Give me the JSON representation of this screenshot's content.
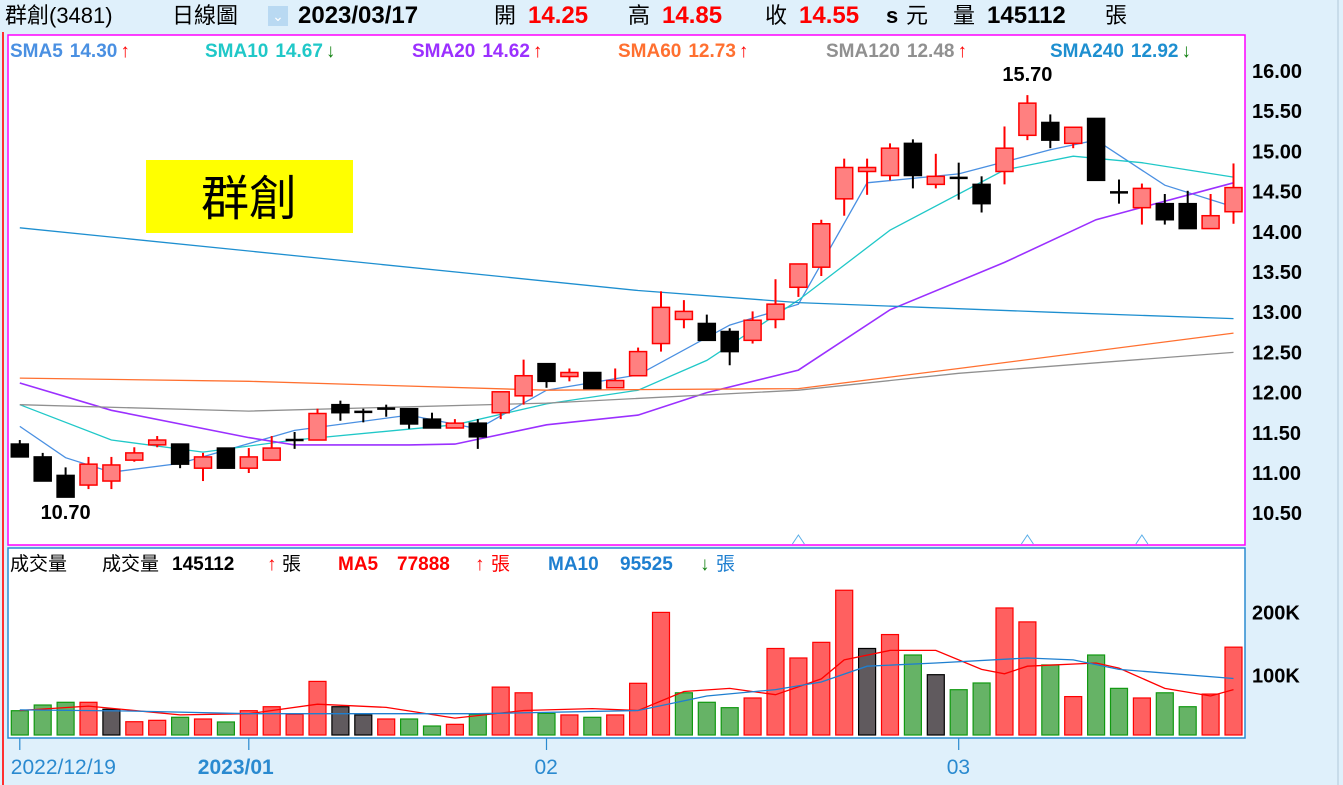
{
  "header": {
    "stock": "群創(3481)",
    "chart_type": "日線圖",
    "date": "2023/03/17",
    "open_label": "開",
    "open": "14.25",
    "high_label": "高",
    "high": "14.85",
    "close_label": "收",
    "close": "14.55",
    "s_label": "s",
    "unit": "元",
    "volume_label": "量",
    "volume": "145112",
    "volume_unit": "張"
  },
  "watermark": "群創",
  "colors": {
    "up": "#ff0000",
    "up_fill": "#ff8080",
    "down": "#000000",
    "vol_up": "#ff6060",
    "vol_down": "#66b366",
    "vol_flat": "#605a5e",
    "panel_border": "#ff00ff",
    "vol_border": "#2a8ad0"
  },
  "ma_labels": [
    {
      "name": "SMA5",
      "value": "14.30",
      "arrow": "↑",
      "color": "#4a90e2",
      "arrow_color": "#ff0000"
    },
    {
      "name": "SMA10",
      "value": "14.67",
      "arrow": "↓",
      "color": "#20c8c8",
      "arrow_color": "#108010"
    },
    {
      "name": "SMA20",
      "value": "14.62",
      "arrow": "↑",
      "color": "#9b30ff",
      "arrow_color": "#ff0000"
    },
    {
      "name": "SMA60",
      "value": "12.73",
      "arrow": "↑",
      "color": "#ff7030",
      "arrow_color": "#ff0000"
    },
    {
      "name": "SMA120",
      "value": "12.48",
      "arrow": "↑",
      "color": "#909090",
      "arrow_color": "#ff0000"
    },
    {
      "name": "SMA240",
      "value": "12.92",
      "arrow": "↓",
      "color": "#1e8fd0",
      "arrow_color": "#108010"
    }
  ],
  "volume_labels": {
    "title": "成交量",
    "vol_name": "成交量",
    "vol_value": "145112",
    "vol_arrow": "↑",
    "vol_unit": "張",
    "ma5_name": "MA5",
    "ma5_value": "77888",
    "ma5_arrow": "↑",
    "ma5_unit": "張",
    "ma10_name": "MA10",
    "ma10_value": "95525",
    "ma10_arrow": "↓",
    "ma10_unit": "張"
  },
  "chart_data": [
    {
      "type": "candlestick",
      "title": "群創(3481) 日線圖",
      "ylim": [
        10.1,
        16.45
      ],
      "y_ticks": [
        "16.00",
        "15.50",
        "15.00",
        "14.50",
        "14.00",
        "13.50",
        "13.00",
        "12.50",
        "12.00",
        "11.50",
        "11.00",
        "10.50"
      ],
      "x_ticks": [
        {
          "index": 0,
          "label": "2022/12/19"
        },
        {
          "index": 10,
          "label": "2023/01"
        },
        {
          "index": 23,
          "label": "02"
        },
        {
          "index": 41,
          "label": "03"
        }
      ],
      "annotations": [
        {
          "index": 44,
          "label": "15.70",
          "kind": "high"
        },
        {
          "index": 2,
          "label": "10.70",
          "kind": "low"
        }
      ],
      "markers": [
        34,
        44,
        49
      ],
      "ohlc": [
        [
          11.36,
          11.41,
          11.2,
          11.2
        ],
        [
          11.2,
          11.25,
          10.9,
          10.9
        ],
        [
          10.97,
          11.07,
          10.7,
          10.7
        ],
        [
          10.85,
          11.2,
          10.8,
          11.11
        ],
        [
          10.9,
          11.2,
          10.8,
          11.1
        ],
        [
          11.16,
          11.32,
          11.14,
          11.25
        ],
        [
          11.35,
          11.46,
          11.32,
          11.41
        ],
        [
          11.36,
          11.36,
          11.06,
          11.11
        ],
        [
          11.06,
          11.25,
          10.9,
          11.2
        ],
        [
          11.31,
          11.31,
          11.06,
          11.06
        ],
        [
          11.06,
          11.31,
          11.0,
          11.2
        ],
        [
          11.16,
          11.46,
          11.16,
          11.31
        ],
        [
          11.41,
          11.51,
          11.3,
          11.41
        ],
        [
          11.41,
          11.8,
          11.41,
          11.74
        ],
        [
          11.85,
          11.9,
          11.65,
          11.75
        ],
        [
          11.76,
          11.8,
          11.63,
          11.76
        ],
        [
          11.8,
          11.85,
          11.7,
          11.8
        ],
        [
          11.8,
          11.8,
          11.55,
          11.61
        ],
        [
          11.67,
          11.75,
          11.56,
          11.56
        ],
        [
          11.56,
          11.67,
          11.56,
          11.62
        ],
        [
          11.62,
          11.67,
          11.3,
          11.45
        ],
        [
          11.75,
          12.01,
          11.67,
          12.01
        ],
        [
          11.96,
          12.41,
          11.85,
          12.21
        ],
        [
          12.36,
          12.36,
          12.06,
          12.14
        ],
        [
          12.2,
          12.3,
          12.14,
          12.25
        ],
        [
          12.25,
          12.25,
          12.05,
          12.05
        ],
        [
          12.06,
          12.3,
          12.06,
          12.15
        ],
        [
          12.21,
          12.56,
          12.21,
          12.51
        ],
        [
          12.61,
          13.26,
          12.51,
          13.06
        ],
        [
          12.91,
          13.15,
          12.8,
          13.01
        ],
        [
          12.86,
          12.97,
          12.65,
          12.65
        ],
        [
          12.76,
          12.8,
          12.34,
          12.51
        ],
        [
          12.65,
          13.01,
          12.61,
          12.9
        ],
        [
          12.91,
          13.41,
          12.8,
          13.1
        ],
        [
          13.31,
          13.6,
          13.19,
          13.6
        ],
        [
          13.56,
          14.15,
          13.45,
          14.1
        ],
        [
          14.41,
          14.91,
          14.2,
          14.8
        ],
        [
          14.75,
          14.91,
          14.46,
          14.8
        ],
        [
          14.7,
          15.1,
          14.64,
          15.04
        ],
        [
          15.1,
          15.15,
          14.54,
          14.7
        ],
        [
          14.59,
          14.97,
          14.54,
          14.69
        ],
        [
          14.67,
          14.86,
          14.4,
          14.67
        ],
        [
          14.59,
          14.69,
          14.24,
          14.35
        ],
        [
          14.75,
          15.31,
          14.59,
          15.04
        ],
        [
          15.2,
          15.7,
          15.14,
          15.6
        ],
        [
          15.36,
          15.46,
          15.04,
          15.14
        ],
        [
          15.1,
          15.3,
          15.04,
          15.3
        ],
        [
          15.41,
          15.41,
          14.64,
          14.64
        ],
        [
          14.49,
          14.65,
          14.35,
          14.49
        ],
        [
          14.3,
          14.6,
          14.09,
          14.54
        ],
        [
          14.35,
          14.47,
          14.09,
          14.15
        ],
        [
          14.35,
          14.51,
          14.04,
          14.04
        ],
        [
          14.04,
          14.47,
          14.04,
          14.2
        ],
        [
          14.25,
          14.85,
          14.1,
          14.55
        ]
      ],
      "series": [
        {
          "name": "SMA5",
          "points": [
            [
              0,
              11.58
            ],
            [
              2,
              11.19
            ],
            [
              4,
              11.01
            ],
            [
              7,
              11.12
            ],
            [
              12,
              11.53
            ],
            [
              17,
              11.72
            ],
            [
              20,
              11.55
            ],
            [
              23,
              12.03
            ],
            [
              27,
              12.22
            ],
            [
              31,
              12.84
            ],
            [
              34,
              13.1
            ],
            [
              37,
              14.61
            ],
            [
              41,
              14.72
            ],
            [
              45,
              15.02
            ],
            [
              47,
              15.14
            ],
            [
              50,
              14.58
            ],
            [
              53,
              14.31
            ]
          ]
        },
        {
          "name": "SMA10",
          "points": [
            [
              0,
              11.85
            ],
            [
              4,
              11.41
            ],
            [
              8,
              11.26
            ],
            [
              12,
              11.41
            ],
            [
              19,
              11.6
            ],
            [
              23,
              11.86
            ],
            [
              27,
              12.03
            ],
            [
              30,
              12.4
            ],
            [
              34,
              13.15
            ],
            [
              38,
              14.02
            ],
            [
              43,
              14.77
            ],
            [
              46,
              14.94
            ],
            [
              49,
              14.86
            ],
            [
              53,
              14.68
            ]
          ]
        },
        {
          "name": "SMA20",
          "points": [
            [
              0,
              12.12
            ],
            [
              4,
              11.78
            ],
            [
              10,
              11.44
            ],
            [
              12,
              11.35
            ],
            [
              17,
              11.35
            ],
            [
              19,
              11.36
            ],
            [
              23,
              11.6
            ],
            [
              27,
              11.72
            ],
            [
              30,
              12.0
            ],
            [
              34,
              12.28
            ],
            [
              38,
              13.03
            ],
            [
              43,
              13.62
            ],
            [
              47,
              14.15
            ],
            [
              53,
              14.61
            ]
          ]
        },
        {
          "name": "SMA60",
          "points": [
            [
              0,
              12.18
            ],
            [
              10,
              12.14
            ],
            [
              23,
              12.03
            ],
            [
              34,
              12.05
            ],
            [
              41,
              12.3
            ],
            [
              53,
              12.74
            ]
          ]
        },
        {
          "name": "SMA120",
          "points": [
            [
              0,
              11.85
            ],
            [
              10,
              11.77
            ],
            [
              23,
              11.87
            ],
            [
              34,
              12.03
            ],
            [
              41,
              12.24
            ],
            [
              53,
              12.5
            ]
          ]
        },
        {
          "name": "SMA240",
          "points": [
            [
              0,
              14.05
            ],
            [
              27,
              13.27
            ],
            [
              34,
              13.12
            ],
            [
              45,
              13.0
            ],
            [
              53,
              12.92
            ]
          ]
        }
      ]
    },
    {
      "type": "bar",
      "title": "成交量",
      "unit": "張",
      "y_ticks": [
        "200K",
        "100K"
      ],
      "values_k": [
        44.7,
        53.7,
        58,
        58,
        47,
        27.3,
        29.5,
        34.3,
        31.6,
        26.9,
        44.7,
        51,
        39,
        91,
        51,
        38,
        31.6,
        31.6,
        20.5,
        23.2,
        39,
        82,
        73,
        40.5,
        38,
        34.3,
        38,
        88,
        200,
        73,
        58,
        49.5,
        64.8,
        143,
        128,
        152.7,
        235,
        143,
        165,
        132.7,
        101.6,
        77.9,
        88.5,
        207,
        185,
        117,
        67,
        132.7,
        80,
        64.8,
        73,
        51,
        71,
        145.112
      ],
      "bar_colors": [
        "g",
        "g",
        "g",
        "r",
        "k",
        "r",
        "r",
        "g",
        "r",
        "g",
        "r",
        "r",
        "r",
        "r",
        "k",
        "k",
        "r",
        "g",
        "g",
        "r",
        "g",
        "r",
        "r",
        "g",
        "r",
        "g",
        "r",
        "r",
        "r",
        "g",
        "g",
        "g",
        "r",
        "r",
        "r",
        "r",
        "r",
        "k",
        "r",
        "g",
        "k",
        "g",
        "g",
        "r",
        "r",
        "g",
        "r",
        "g",
        "g",
        "r",
        "g",
        "g",
        "r",
        "r"
      ],
      "series": [
        {
          "name": "MA5",
          "color": "#ff0000",
          "points": [
            [
              0,
              45
            ],
            [
              3,
              52
            ],
            [
              7,
              38
            ],
            [
              10,
              40
            ],
            [
              13,
              55
            ],
            [
              16,
              50
            ],
            [
              19,
              33
            ],
            [
              22,
              45
            ],
            [
              25,
              48
            ],
            [
              27,
              45
            ],
            [
              29,
              75
            ],
            [
              31,
              80
            ],
            [
              33,
              70
            ],
            [
              35,
              95
            ],
            [
              36,
              125
            ],
            [
              38,
              140
            ],
            [
              40,
              140
            ],
            [
              42,
              110
            ],
            [
              43,
              103
            ],
            [
              44,
              115
            ],
            [
              47,
              120
            ],
            [
              48,
              112
            ],
            [
              50,
              80
            ],
            [
              52,
              68
            ],
            [
              53,
              78
            ]
          ]
        },
        {
          "name": "MA10",
          "color": "#1e7fd0",
          "points": [
            [
              0,
              46
            ],
            [
              5,
              44
            ],
            [
              10,
              40
            ],
            [
              20,
              40
            ],
            [
              27,
              45
            ],
            [
              30,
              68
            ],
            [
              33,
              78
            ],
            [
              35,
              90
            ],
            [
              37,
              115
            ],
            [
              40,
              120
            ],
            [
              44,
              128
            ],
            [
              46,
              125
            ],
            [
              48,
              110
            ],
            [
              53,
              95.5
            ]
          ]
        }
      ]
    }
  ]
}
